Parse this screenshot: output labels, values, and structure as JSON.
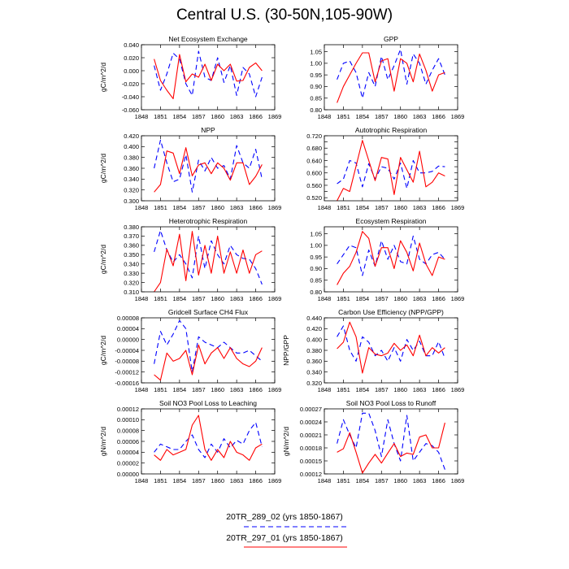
{
  "page": {
    "title": "Central U.S. (30-50N,105-90W)"
  },
  "legend": {
    "entries": [
      {
        "label": "20TR_289_02 (yrs 1850-1867)",
        "color": "#0000ff",
        "dash": "dashed"
      },
      {
        "label": "20TR_297_01 (yrs 1850-1867)",
        "color": "#ff0000",
        "dash": "solid"
      }
    ]
  },
  "colors": {
    "series_a": "#0000ff",
    "series_b": "#ff0000"
  },
  "chart_data": [
    {
      "type": "line",
      "title": "Net Ecosystem Exchange",
      "ylabel": "gC/m^2/d",
      "ylim": [
        -0.06,
        0.04
      ],
      "yticks": [
        0.04,
        0.02,
        0.0,
        -0.02,
        -0.04,
        -0.06
      ],
      "ytick_labels": [
        "0.040",
        "0.020",
        "0.000",
        "-0.020",
        "-0.040",
        "-0.060"
      ],
      "xlim": [
        1848,
        1869
      ],
      "xticks": [
        1848,
        1851,
        1854,
        1857,
        1860,
        1863,
        1866,
        1869
      ],
      "x": [
        1850,
        1851,
        1852,
        1853,
        1854,
        1855,
        1856,
        1857,
        1858,
        1859,
        1860,
        1861,
        1862,
        1863,
        1864,
        1865,
        1866,
        1867
      ],
      "series": [
        {
          "name": "20TR_289_02 (yrs 1850-1867)",
          "values": [
            0.008,
            -0.03,
            -0.005,
            0.027,
            0.018,
            -0.02,
            -0.038,
            0.03,
            -0.01,
            -0.015,
            0.02,
            -0.018,
            0.008,
            -0.038,
            0.005,
            -0.005,
            -0.04,
            -0.01
          ]
        },
        {
          "name": "20TR_297_01 (yrs 1850-1867)",
          "values": [
            0.018,
            -0.015,
            -0.03,
            -0.043,
            0.025,
            -0.017,
            -0.005,
            -0.01,
            0.01,
            -0.015,
            0.01,
            0.0,
            0.01,
            -0.016,
            -0.015,
            0.005,
            0.012,
            0.0
          ]
        }
      ]
    },
    {
      "type": "line",
      "title": "GPP",
      "ylabel": "",
      "ylim": [
        0.8,
        1.08
      ],
      "yticks": [
        1.05,
        1.0,
        0.95,
        0.9,
        0.85,
        0.8
      ],
      "ytick_labels": [
        "1.05",
        "1.00",
        "0.95",
        "0.90",
        "0.85",
        "0.80"
      ],
      "xlim": [
        1848,
        1869
      ],
      "xticks": [
        1848,
        1851,
        1854,
        1857,
        1860,
        1863,
        1866,
        1869
      ],
      "x": [
        1850,
        1851,
        1852,
        1853,
        1854,
        1855,
        1856,
        1857,
        1858,
        1859,
        1860,
        1861,
        1862,
        1863,
        1864,
        1865,
        1866,
        1867
      ],
      "series": [
        {
          "name": "20TR_289_02 (yrs 1850-1867)",
          "values": [
            0.93,
            1.0,
            1.01,
            0.96,
            0.85,
            0.96,
            0.9,
            1.03,
            0.93,
            0.99,
            1.06,
            0.91,
            1.04,
            1.0,
            0.91,
            0.97,
            1.02,
            0.95
          ]
        },
        {
          "name": "20TR_297_01 (yrs 1850-1867)",
          "values": [
            0.83,
            0.9,
            0.95,
            1.0,
            1.045,
            1.045,
            0.92,
            1.01,
            1.02,
            0.88,
            1.02,
            1.0,
            0.92,
            1.04,
            0.97,
            0.88,
            0.95,
            0.96
          ]
        }
      ]
    },
    {
      "type": "line",
      "title": "NPP",
      "ylabel": "gC/m^2/d",
      "ylim": [
        0.3,
        0.42
      ],
      "yticks": [
        0.42,
        0.4,
        0.38,
        0.36,
        0.34,
        0.32,
        0.3
      ],
      "ytick_labels": [
        "0.420",
        "0.400",
        "0.380",
        "0.360",
        "0.340",
        "0.320",
        "0.300"
      ],
      "xlim": [
        1848,
        1869
      ],
      "xticks": [
        1848,
        1851,
        1854,
        1857,
        1860,
        1863,
        1866,
        1869
      ],
      "x": [
        1850,
        1851,
        1852,
        1853,
        1854,
        1855,
        1856,
        1857,
        1858,
        1859,
        1860,
        1861,
        1862,
        1863,
        1864,
        1865,
        1866,
        1867
      ],
      "series": [
        {
          "name": "20TR_289_02 (yrs 1850-1867)",
          "values": [
            0.36,
            0.412,
            0.37,
            0.335,
            0.34,
            0.385,
            0.316,
            0.375,
            0.355,
            0.38,
            0.36,
            0.365,
            0.34,
            0.402,
            0.37,
            0.36,
            0.395,
            0.34
          ]
        },
        {
          "name": "20TR_297_01 (yrs 1850-1867)",
          "values": [
            0.316,
            0.33,
            0.392,
            0.388,
            0.35,
            0.398,
            0.346,
            0.366,
            0.37,
            0.35,
            0.37,
            0.36,
            0.338,
            0.37,
            0.37,
            0.33,
            0.345,
            0.367
          ]
        }
      ]
    },
    {
      "type": "line",
      "title": "Autotrophic Respiration",
      "ylabel": "",
      "ylim": [
        0.51,
        0.72
      ],
      "yticks": [
        0.72,
        0.7,
        0.68,
        0.66,
        0.64,
        0.62,
        0.6,
        0.58,
        0.56,
        0.54,
        0.52
      ],
      "ytick_labels": [
        "0.720",
        "",
        "0.680",
        "",
        "0.640",
        "",
        "0.600",
        "",
        "0.560",
        "",
        "0.520"
      ],
      "xlim": [
        1848,
        1869
      ],
      "xticks": [
        1848,
        1851,
        1854,
        1857,
        1860,
        1863,
        1866,
        1869
      ],
      "x": [
        1850,
        1851,
        1852,
        1853,
        1854,
        1855,
        1856,
        1857,
        1858,
        1859,
        1860,
        1861,
        1862,
        1863,
        1864,
        1865,
        1866,
        1867
      ],
      "series": [
        {
          "name": "20TR_289_02 (yrs 1850-1867)",
          "values": [
            0.565,
            0.58,
            0.64,
            0.632,
            0.555,
            0.63,
            0.58,
            0.62,
            0.615,
            0.58,
            0.632,
            0.55,
            0.64,
            0.6,
            0.6,
            0.605,
            0.622,
            0.62
          ]
        },
        {
          "name": "20TR_297_01 (yrs 1850-1867)",
          "values": [
            0.51,
            0.55,
            0.54,
            0.622,
            0.705,
            0.64,
            0.575,
            0.65,
            0.645,
            0.53,
            0.65,
            0.61,
            0.57,
            0.67,
            0.555,
            0.57,
            0.6,
            0.59
          ]
        }
      ]
    },
    {
      "type": "line",
      "title": "Heterotrophic Respiration",
      "ylabel": "gC/m^2/d",
      "ylim": [
        0.31,
        0.38
      ],
      "yticks": [
        0.38,
        0.37,
        0.36,
        0.35,
        0.34,
        0.33,
        0.32,
        0.31
      ],
      "ytick_labels": [
        "0.380",
        "0.370",
        "0.360",
        "0.350",
        "0.340",
        "0.330",
        "0.320",
        "0.310"
      ],
      "xlim": [
        1848,
        1869
      ],
      "xticks": [
        1848,
        1851,
        1854,
        1857,
        1860,
        1863,
        1866,
        1869
      ],
      "x": [
        1850,
        1851,
        1852,
        1853,
        1854,
        1855,
        1856,
        1857,
        1858,
        1859,
        1860,
        1861,
        1862,
        1863,
        1864,
        1865,
        1866,
        1867
      ],
      "series": [
        {
          "name": "20TR_289_02 (yrs 1850-1867)",
          "values": [
            0.353,
            0.376,
            0.355,
            0.342,
            0.35,
            0.34,
            0.325,
            0.37,
            0.335,
            0.365,
            0.35,
            0.34,
            0.36,
            0.35,
            0.346,
            0.345,
            0.335,
            0.318
          ]
        },
        {
          "name": "20TR_297_01 (yrs 1850-1867)",
          "values": [
            0.31,
            0.32,
            0.356,
            0.338,
            0.372,
            0.322,
            0.375,
            0.328,
            0.36,
            0.33,
            0.37,
            0.33,
            0.353,
            0.33,
            0.355,
            0.33,
            0.35,
            0.354
          ]
        }
      ]
    },
    {
      "type": "line",
      "title": "Ecosystem Respiration",
      "ylabel": "",
      "ylim": [
        0.8,
        1.08
      ],
      "yticks": [
        1.05,
        1.0,
        0.95,
        0.9,
        0.85,
        0.8
      ],
      "ytick_labels": [
        "1.05",
        "1.00",
        "0.95",
        "0.90",
        "0.85",
        "0.80"
      ],
      "xlim": [
        1848,
        1869
      ],
      "xticks": [
        1848,
        1851,
        1854,
        1857,
        1860,
        1863,
        1866,
        1869
      ],
      "x": [
        1850,
        1851,
        1852,
        1853,
        1854,
        1855,
        1856,
        1857,
        1858,
        1859,
        1860,
        1861,
        1862,
        1863,
        1864,
        1865,
        1866,
        1867
      ],
      "series": [
        {
          "name": "20TR_289_02 (yrs 1850-1867)",
          "values": [
            0.92,
            0.96,
            1.0,
            0.99,
            0.87,
            0.98,
            0.91,
            1.02,
            0.94,
            1.0,
            0.93,
            0.92,
            1.04,
            0.94,
            0.92,
            0.96,
            0.97,
            0.94
          ]
        },
        {
          "name": "20TR_297_01 (yrs 1850-1867)",
          "values": [
            0.83,
            0.88,
            0.91,
            0.97,
            1.06,
            1.03,
            0.91,
            0.99,
            0.99,
            0.9,
            1.02,
            0.97,
            0.89,
            1.01,
            0.92,
            0.87,
            0.95,
            0.94
          ]
        }
      ]
    },
    {
      "type": "line",
      "title": "Gridcell Surface CH4 Flux",
      "ylabel": "gC/m^2/d",
      "ylim": [
        -0.00016,
        8e-05
      ],
      "yticks": [
        8e-05,
        4e-05,
        0.0,
        -4e-05,
        -8e-05,
        -0.00012,
        -0.00016
      ],
      "ytick_labels": [
        "0.00008",
        "0.00004",
        "0.00000",
        "-0.00004",
        "-0.00008",
        "-0.00012",
        "-0.00016"
      ],
      "xlim": [
        1848,
        1869
      ],
      "xticks": [
        1848,
        1851,
        1854,
        1857,
        1860,
        1863,
        1866,
        1869
      ],
      "x": [
        1850,
        1851,
        1852,
        1853,
        1854,
        1855,
        1856,
        1857,
        1858,
        1859,
        1860,
        1861,
        1862,
        1863,
        1864,
        1865,
        1866,
        1867
      ],
      "series": [
        {
          "name": "20TR_289_02 (yrs 1850-1867)",
          "values": [
            -9e-05,
            3e-05,
            -2e-05,
            2e-05,
            7e-05,
            4e-05,
            -0.00012,
            1e-05,
            -1e-05,
            -2e-05,
            -3e-05,
            -1e-05,
            -3e-05,
            -5e-05,
            -5e-05,
            -4e-05,
            -6e-05,
            -8e-05
          ]
        },
        {
          "name": "20TR_297_01 (yrs 1850-1867)",
          "values": [
            -0.00013,
            -0.00015,
            -5e-05,
            -8e-05,
            -7e-05,
            -4e-05,
            -0.00013,
            -2e-05,
            -9e-05,
            -5e-05,
            -3e-05,
            -7e-05,
            -3e-05,
            -7e-05,
            -9e-05,
            -0.0001,
            -8e-05,
            -3e-05
          ]
        }
      ]
    },
    {
      "type": "line",
      "title": "Carbon Use Efficiency (NPP/GPP)",
      "ylabel": "NPP/GPP",
      "ylim": [
        0.32,
        0.44
      ],
      "yticks": [
        0.44,
        0.42,
        0.4,
        0.38,
        0.36,
        0.34,
        0.32
      ],
      "ytick_labels": [
        "0.440",
        "0.420",
        "0.400",
        "0.380",
        "0.360",
        "0.340",
        "0.320"
      ],
      "xlim": [
        1848,
        1869
      ],
      "xticks": [
        1848,
        1851,
        1854,
        1857,
        1860,
        1863,
        1866,
        1869
      ],
      "x": [
        1850,
        1851,
        1852,
        1853,
        1854,
        1855,
        1856,
        1857,
        1858,
        1859,
        1860,
        1861,
        1862,
        1863,
        1864,
        1865,
        1866,
        1867
      ],
      "series": [
        {
          "name": "20TR_289_02 (yrs 1850-1867)",
          "values": [
            0.405,
            0.425,
            0.38,
            0.36,
            0.405,
            0.395,
            0.37,
            0.38,
            0.36,
            0.385,
            0.36,
            0.4,
            0.38,
            0.397,
            0.37,
            0.37,
            0.396,
            0.365
          ]
        },
        {
          "name": "20TR_297_01 (yrs 1850-1867)",
          "values": [
            0.383,
            0.395,
            0.432,
            0.405,
            0.338,
            0.385,
            0.373,
            0.37,
            0.375,
            0.393,
            0.38,
            0.39,
            0.37,
            0.408,
            0.37,
            0.385,
            0.375,
            0.385
          ]
        }
      ]
    },
    {
      "type": "line",
      "title": "Soil NO3 Pool Loss to Leaching",
      "ylabel": "gN/m^2/d",
      "ylim": [
        0.0,
        0.00012
      ],
      "yticks": [
        0.00012,
        0.0001,
        8e-05,
        6e-05,
        4e-05,
        2e-05,
        0.0
      ],
      "ytick_labels": [
        "0.00012",
        "0.00010",
        "0.00008",
        "0.00006",
        "0.00004",
        "0.00002",
        "0.00000"
      ],
      "xlim": [
        1848,
        1869
      ],
      "xticks": [
        1848,
        1851,
        1854,
        1857,
        1860,
        1863,
        1866,
        1869
      ],
      "x": [
        1850,
        1851,
        1852,
        1853,
        1854,
        1855,
        1856,
        1857,
        1858,
        1859,
        1860,
        1861,
        1862,
        1863,
        1864,
        1865,
        1866,
        1867
      ],
      "series": [
        {
          "name": "20TR_289_02 (yrs 1850-1867)",
          "values": [
            4e-05,
            5.5e-05,
            5e-05,
            4.5e-05,
            4.5e-05,
            6e-05,
            7.2e-05,
            4.5e-05,
            3e-05,
            5.5e-05,
            4e-05,
            6.5e-05,
            4.8e-05,
            6.2e-05,
            5.5e-05,
            8e-05,
            9.5e-05,
            5e-05
          ]
        },
        {
          "name": "20TR_297_01 (yrs 1850-1867)",
          "values": [
            3.5e-05,
            2.5e-05,
            4.5e-05,
            3.5e-05,
            4e-05,
            4.5e-05,
            9e-05,
            0.000108,
            4.5e-05,
            2.5e-05,
            4.5e-05,
            3e-05,
            6e-05,
            4e-05,
            3.5e-05,
            2.5e-05,
            4.8e-05,
            5.5e-05
          ]
        }
      ]
    },
    {
      "type": "line",
      "title": "Soil NO3 Pool Loss to Runoff",
      "ylabel": "gN/m^2/d",
      "ylim": [
        0.00012,
        0.00027
      ],
      "yticks": [
        0.00027,
        0.00024,
        0.00021,
        0.00018,
        0.00015,
        0.00012
      ],
      "ytick_labels": [
        "0.00027",
        "0.00024",
        "0.00021",
        "0.00018",
        "0.00015",
        "0.00012"
      ],
      "xlim": [
        1848,
        1869
      ],
      "xticks": [
        1848,
        1851,
        1854,
        1857,
        1860,
        1863,
        1866,
        1869
      ],
      "x": [
        1850,
        1851,
        1852,
        1853,
        1854,
        1855,
        1856,
        1857,
        1858,
        1859,
        1860,
        1861,
        1862,
        1863,
        1864,
        1865,
        1866,
        1867
      ],
      "series": [
        {
          "name": "20TR_289_02 (yrs 1850-1867)",
          "values": [
            0.00019,
            0.000245,
            0.00021,
            0.00018,
            0.00026,
            0.00026,
            0.00022,
            0.00016,
            0.000245,
            0.00019,
            0.00015,
            0.000255,
            0.00015,
            0.00017,
            0.00019,
            0.000185,
            0.00017,
            0.00013
          ]
        },
        {
          "name": "20TR_297_01 (yrs 1850-1867)",
          "values": [
            0.00017,
            0.000178,
            0.000215,
            0.00017,
            0.000122,
            0.000145,
            0.000165,
            0.000145,
            0.000168,
            0.00019,
            0.00016,
            0.000168,
            0.000165,
            0.000205,
            0.00021,
            0.00018,
            0.00018,
            0.000238
          ]
        }
      ]
    }
  ]
}
